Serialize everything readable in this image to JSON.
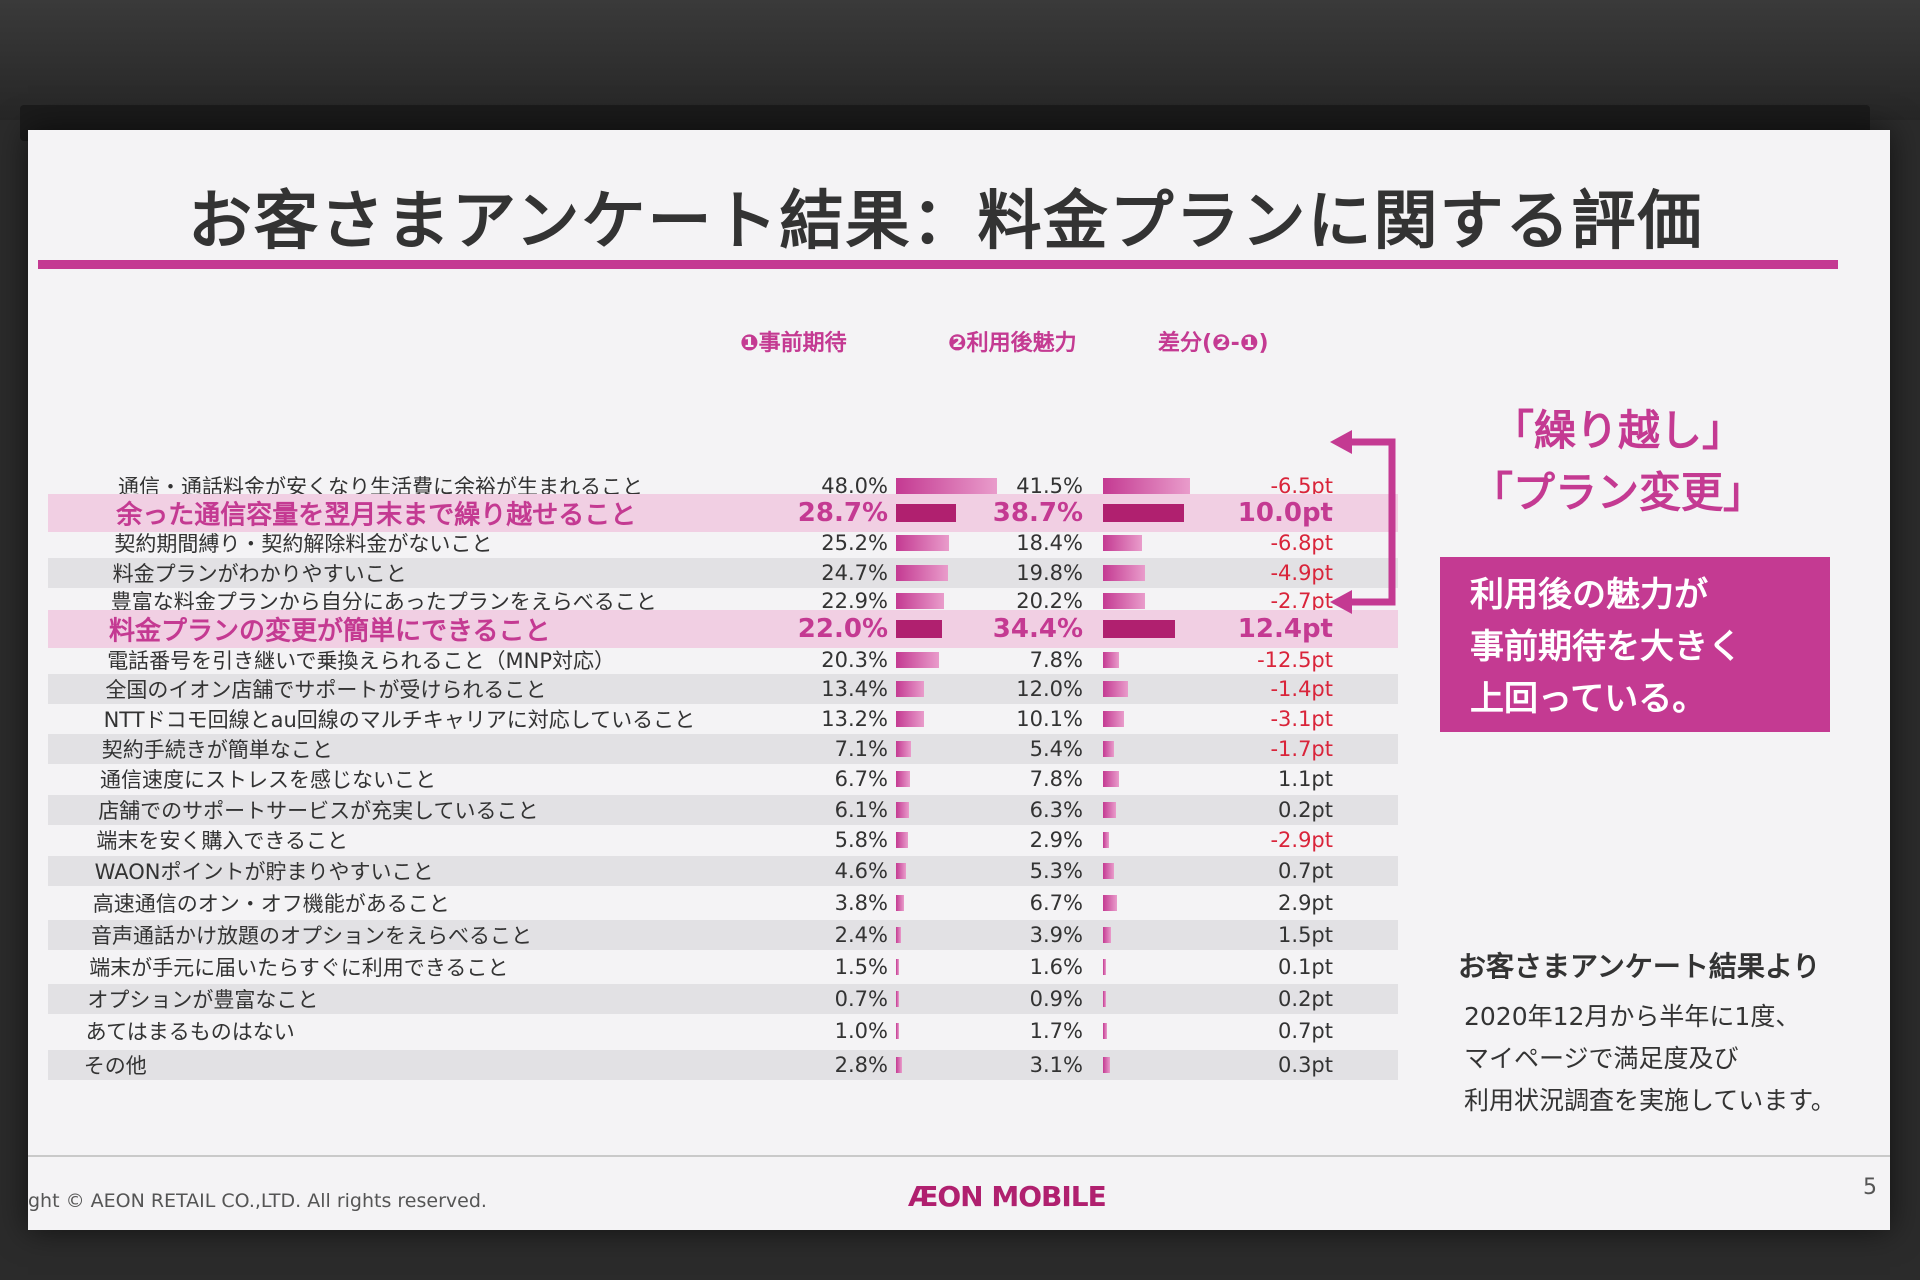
{
  "title": "お客さまアンケート結果：料金プランに関する評価",
  "headers": {
    "col1": "❶事前期待",
    "col2": "❷利用後魅力",
    "diff": "差分(❷-❶)"
  },
  "callout": {
    "line1": "「繰り越し」",
    "line2": "「プラン変更」",
    "box": [
      "利用後の魅力が",
      "事前期待を大きく",
      "上回っている。"
    ]
  },
  "note": {
    "title": "お客さまアンケート結果より",
    "lines": [
      "2020年12月から半年に1度、",
      "マイページで満足度及び",
      "利用状況調査を実施しています。"
    ]
  },
  "footer": {
    "copyright": "ght © AEON RETAIL CO.,LTD. All rights reserved.",
    "logo": "ÆON MOBILE",
    "page": "5"
  },
  "colors": {
    "accent": "#c43a92",
    "accent_dark": "#b0206f",
    "negative": "#d9243a"
  },
  "chart_data": {
    "type": "bar",
    "categories": [
      "通信・通話料金が安くなり生活費に余裕が生まれること",
      "余った通信容量を翌月末まで繰り越せること",
      "契約期間縛り・契約解除料金がないこと",
      "料金プランがわかりやすいこと",
      "豊富な料金プランから自分にあったプランをえらべること",
      "料金プランの変更が簡単にできること",
      "電話番号を引き継いで乗換えられること（MNP対応）",
      "全国のイオン店舗でサポートが受けられること",
      "NTTドコモ回線とau回線のマルチキャリアに対応していること",
      "契約手続きが簡単なこと",
      "通信速度にストレスを感じないこと",
      "店舗でのサポートサービスが充実していること",
      "端末を安く購入できること",
      "WAONポイントが貯まりやすいこと",
      "高速通信のオン・オフ機能があること",
      "音声通話かけ放題のオプションをえらべること",
      "端末が手元に届いたらすぐに利用できること",
      "オプションが豊富なこと",
      "あてはまるものはない",
      "その他"
    ],
    "highlighted": [
      1,
      5
    ],
    "series": [
      {
        "name": "❶事前期待",
        "values": [
          48.0,
          28.7,
          25.2,
          24.7,
          22.9,
          22.0,
          20.3,
          13.4,
          13.2,
          7.1,
          6.7,
          6.1,
          5.8,
          4.6,
          3.8,
          2.4,
          1.5,
          0.7,
          1.0,
          2.8
        ],
        "labels": [
          "48.0%",
          "28.7%",
          "25.2%",
          "24.7%",
          "22.9%",
          "22.0%",
          "20.3%",
          "13.4%",
          "13.2%",
          "7.1%",
          "6.7%",
          "6.1%",
          "5.8%",
          "4.6%",
          "3.8%",
          "2.4%",
          "1.5%",
          "0.7%",
          "1.0%",
          "2.8%"
        ]
      },
      {
        "name": "❷利用後魅力",
        "values": [
          41.5,
          38.7,
          18.4,
          19.8,
          20.2,
          34.4,
          7.8,
          12.0,
          10.1,
          5.4,
          7.8,
          6.3,
          2.9,
          5.3,
          6.7,
          3.9,
          1.6,
          0.9,
          1.7,
          3.1
        ],
        "labels": [
          "41.5%",
          "38.7%",
          "18.4%",
          "19.8%",
          "20.2%",
          "34.4%",
          "7.8%",
          "12.0%",
          "10.1%",
          "5.4%",
          "7.8%",
          "6.3%",
          "2.9%",
          "5.3%",
          "6.7%",
          "3.9%",
          "1.6%",
          "0.9%",
          "1.7%",
          "3.1%"
        ]
      }
    ],
    "diff": {
      "name": "差分(❷-❶)",
      "values": [
        -6.5,
        10.0,
        -6.8,
        -4.9,
        -2.7,
        12.4,
        -12.5,
        -1.4,
        -3.1,
        -1.7,
        1.1,
        0.2,
        -2.9,
        0.7,
        2.9,
        1.5,
        0.1,
        0.2,
        0.7,
        0.3
      ],
      "labels": [
        "-6.5pt",
        "10.0pt",
        "-6.8pt",
        "-4.9pt",
        "-2.7pt",
        "12.4pt",
        "-12.5pt",
        "-1.4pt",
        "-3.1pt",
        "-1.7pt",
        "1.1pt",
        "0.2pt",
        "-2.9pt",
        "0.7pt",
        "2.9pt",
        "1.5pt",
        "0.1pt",
        "0.2pt",
        "0.7pt",
        "0.3pt"
      ]
    }
  }
}
